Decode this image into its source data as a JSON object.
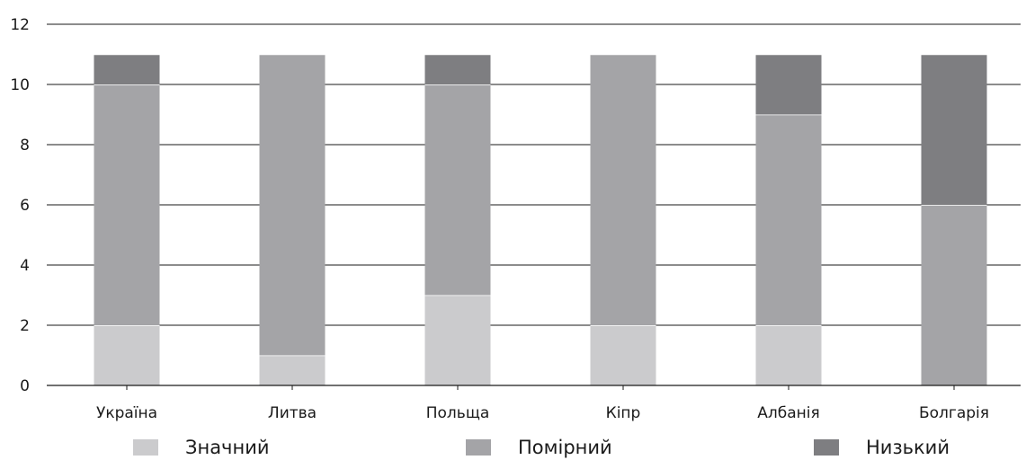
{
  "chart_data": {
    "type": "bar",
    "stacked": true,
    "categories": [
      "Україна",
      "Литва",
      "Польща",
      "Кіпр",
      "Албанія",
      "Болгарія"
    ],
    "series": [
      {
        "name": "Значний",
        "values": [
          2,
          1,
          3,
          2,
          2,
          0
        ],
        "color": "#cbcbcd"
      },
      {
        "name": "Помірний",
        "values": [
          8,
          10,
          7,
          9,
          7,
          6
        ],
        "color": "#a4a4a7"
      },
      {
        "name": "Низький",
        "values": [
          1,
          0,
          1,
          0,
          2,
          5
        ],
        "color": "#7e7e81"
      }
    ],
    "ylim": [
      0,
      12
    ],
    "yticks": [
      "0",
      "2",
      "4",
      "6",
      "8",
      "10",
      "12"
    ],
    "grid": true,
    "legend_position": "bottom",
    "title": "",
    "xlabel": "",
    "ylabel": ""
  }
}
